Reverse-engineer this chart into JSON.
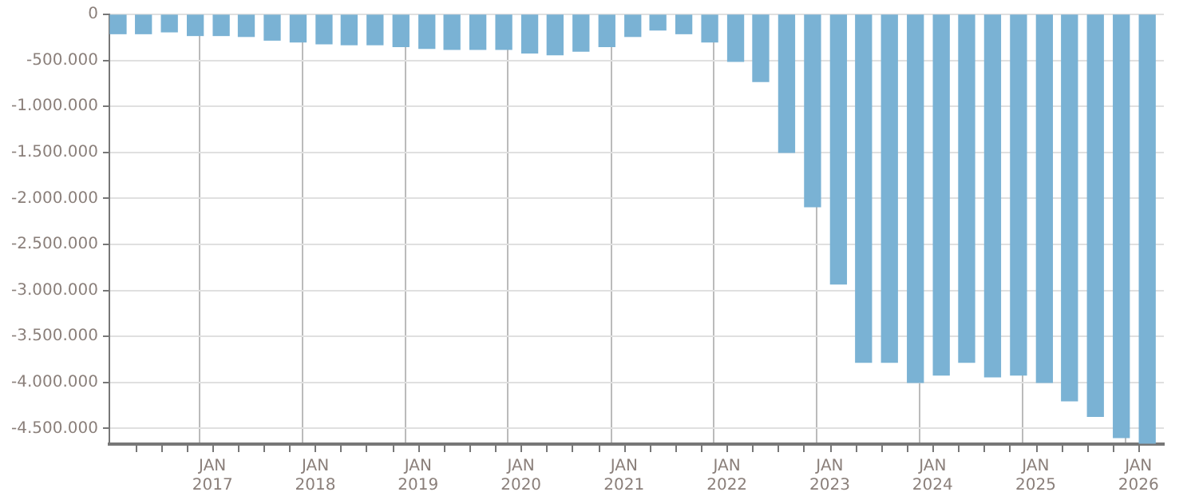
{
  "chart_data": {
    "type": "bar",
    "color": "#7ab2d4",
    "x": [
      "2016-02",
      "2016-05",
      "2016-08",
      "2016-11",
      "2017-02",
      "2017-05",
      "2017-08",
      "2017-11",
      "2018-02",
      "2018-05",
      "2018-08",
      "2018-11",
      "2019-02",
      "2019-05",
      "2019-08",
      "2019-11",
      "2020-02",
      "2020-05",
      "2020-08",
      "2020-11",
      "2021-02",
      "2021-05",
      "2021-08",
      "2021-11",
      "2022-02",
      "2022-05",
      "2022-08",
      "2022-11",
      "2023-02",
      "2023-05",
      "2023-08",
      "2023-11",
      "2024-02",
      "2024-05",
      "2024-08",
      "2024-11",
      "2025-02",
      "2025-05",
      "2025-08",
      "2025-11",
      "2026-02"
    ],
    "values": [
      -210000,
      -210000,
      -190000,
      -230000,
      -230000,
      -240000,
      -280000,
      -300000,
      -320000,
      -330000,
      -330000,
      -350000,
      -370000,
      -380000,
      -380000,
      -380000,
      -420000,
      -440000,
      -400000,
      -350000,
      -240000,
      -170000,
      -210000,
      -300000,
      -510000,
      -730000,
      -1500000,
      -2090000,
      -2930000,
      -3780000,
      -3780000,
      -4000000,
      -3920000,
      -3780000,
      -3940000,
      -3920000,
      -4000000,
      -4200000,
      -4370000,
      -4600000,
      -4660000
    ],
    "ylim": [
      -4670000,
      0
    ],
    "yticks": [
      0,
      {
        "value": -500000,
        "label": "-500.000"
      },
      {
        "value": -1000000,
        "label": "-1.000.000"
      },
      {
        "value": -1500000,
        "label": "-1.500.000"
      },
      {
        "value": -2000000,
        "label": "-2.000.000"
      },
      {
        "value": -2500000,
        "label": "-2.500.000"
      },
      {
        "value": -3000000,
        "label": "-3.000.000"
      },
      {
        "value": -3500000,
        "label": "-3.500.000"
      },
      {
        "value": -4000000,
        "label": "-4.000.000"
      },
      {
        "value": -4500000,
        "label": "-4.500.000"
      }
    ],
    "xlim": [
      "2016-01",
      "2026-04"
    ],
    "xticks": [
      {
        "value": "2016-04",
        "label": null
      },
      {
        "value": "2016-07",
        "label": null
      },
      {
        "value": "2016-10",
        "label": null
      },
      {
        "value": "2017-01",
        "label": "JAN 2017"
      },
      {
        "value": "2017-04",
        "label": null
      },
      {
        "value": "2017-07",
        "label": null
      },
      {
        "value": "2017-10",
        "label": null
      },
      {
        "value": "2018-01",
        "label": "JAN 2018"
      },
      {
        "value": "2018-04",
        "label": null
      },
      {
        "value": "2018-07",
        "label": null
      },
      {
        "value": "2018-10",
        "label": null
      },
      {
        "value": "2019-01",
        "label": "JAN 2019"
      },
      {
        "value": "2019-04",
        "label": null
      },
      {
        "value": "2019-07",
        "label": null
      },
      {
        "value": "2019-10",
        "label": null
      },
      {
        "value": "2020-01",
        "label": "JAN 2020"
      },
      {
        "value": "2020-04",
        "label": null
      },
      {
        "value": "2020-07",
        "label": null
      },
      {
        "value": "2020-10",
        "label": null
      },
      {
        "value": "2021-01",
        "label": "JAN 2021"
      },
      {
        "value": "2021-04",
        "label": null
      },
      {
        "value": "2021-07",
        "label": null
      },
      {
        "value": "2021-10",
        "label": null
      },
      {
        "value": "2022-01",
        "label": "JAN 2022"
      },
      {
        "value": "2022-04",
        "label": null
      },
      {
        "value": "2022-07",
        "label": null
      },
      {
        "value": "2022-10",
        "label": null
      },
      {
        "value": "2023-01",
        "label": "JAN 2023"
      },
      {
        "value": "2023-04",
        "label": null
      },
      {
        "value": "2023-07",
        "label": null
      },
      {
        "value": "2023-10",
        "label": null
      },
      {
        "value": "2024-01",
        "label": "JAN 2024"
      },
      {
        "value": "2024-04",
        "label": null
      },
      {
        "value": "2024-07",
        "label": null
      },
      {
        "value": "2024-10",
        "label": null
      },
      {
        "value": "2025-01",
        "label": "JAN 2025"
      },
      {
        "value": "2025-04",
        "label": null
      },
      {
        "value": "2025-07",
        "label": null
      },
      {
        "value": "2025-10",
        "label": null
      },
      {
        "value": "2026-01",
        "label": "JAN 2026"
      }
    ],
    "grid": true
  }
}
